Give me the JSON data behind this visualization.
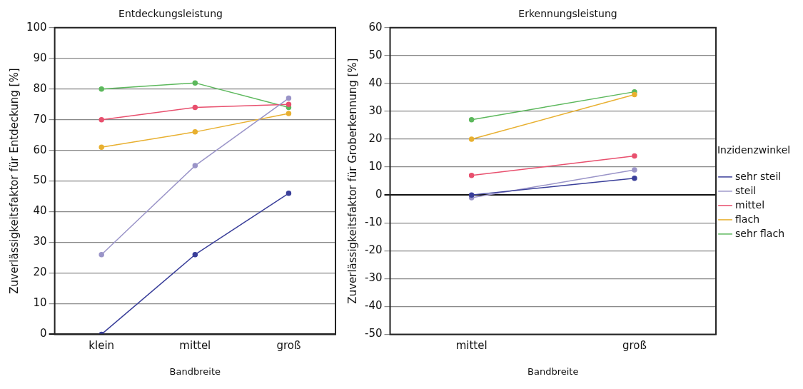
{
  "chart_data": [
    {
      "type": "line",
      "title": "Entdeckungsleistung",
      "xlabel": "Bandbreite",
      "ylabel": "Zuverlässigkeitsfaktor für Entdeckung [%]",
      "categories": [
        "klein",
        "mittel",
        "groß"
      ],
      "ylim": [
        0,
        100
      ],
      "yticks": [
        0,
        10,
        20,
        30,
        40,
        50,
        60,
        70,
        80,
        90,
        100
      ],
      "grid": "y",
      "legend": false,
      "marker": "circle",
      "series": [
        {
          "color": "#3a3f9a",
          "values": [
            0,
            26,
            46
          ]
        },
        {
          "color": "#9a94c8",
          "values": [
            26,
            55,
            77
          ]
        },
        {
          "color": "#e8506e",
          "values": [
            70,
            74,
            75
          ]
        },
        {
          "color": "#e8b030",
          "values": [
            61,
            66,
            72
          ]
        },
        {
          "color": "#5cb85c",
          "values": [
            80,
            82,
            74
          ]
        }
      ]
    },
    {
      "type": "line",
      "title": "Erkennungsleistung",
      "xlabel": "Bandbreite",
      "ylabel": "Zuverlässigkeitsfaktor für Groberkennung [%]",
      "legend_title": "Inzidenzwinkel",
      "categories": [
        "mittel",
        "groß"
      ],
      "ylim": [
        -50,
        60
      ],
      "yticks": [
        -50,
        -40,
        -30,
        -20,
        -10,
        0,
        10,
        20,
        30,
        40,
        50,
        60
      ],
      "grid": "y",
      "legend": "right",
      "marker": "circle",
      "series": [
        {
          "name": "sehr steil",
          "color": "#3a3f9a",
          "values": [
            0,
            6
          ]
        },
        {
          "name": "steil",
          "color": "#9a94c8",
          "values": [
            -1,
            9
          ]
        },
        {
          "name": "mittel",
          "color": "#e8506e",
          "values": [
            7,
            14
          ]
        },
        {
          "name": "flach",
          "color": "#e8b030",
          "values": [
            20,
            36
          ]
        },
        {
          "name": "sehr flach",
          "color": "#5cb85c",
          "values": [
            27,
            37
          ]
        }
      ]
    }
  ]
}
